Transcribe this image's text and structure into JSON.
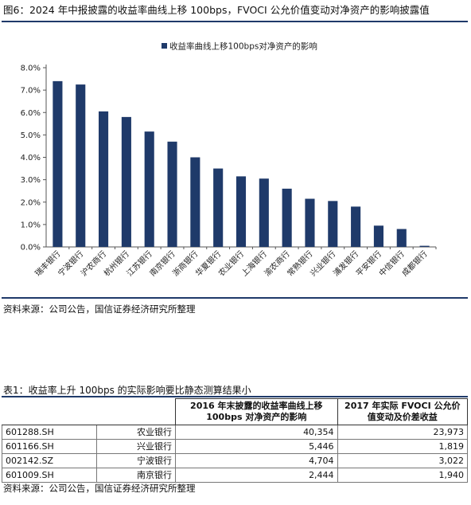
{
  "figure": {
    "title": "图6：2024 年中报披露的收益率曲线上移 100bps，FVOCI 公允价值变动对净资产的影响披露值",
    "source": "资料来源：公司公告，国信证券经济研究所整理"
  },
  "chart_data": {
    "type": "bar",
    "series": [
      {
        "name": "收益率曲线上移100bps对净资产的影响",
        "values": [
          7.4,
          7.25,
          6.05,
          5.8,
          5.15,
          4.7,
          4.0,
          3.5,
          3.15,
          3.05,
          2.6,
          2.15,
          2.05,
          1.8,
          0.95,
          0.8,
          0.05
        ]
      }
    ],
    "categories": [
      "瑞丰银行",
      "宁波银行",
      "沪农商行",
      "杭州银行",
      "江苏银行",
      "南京银行",
      "浙商银行",
      "华夏银行",
      "农业银行",
      "上海银行",
      "渝农商行",
      "常熟银行",
      "兴业银行",
      "浦发银行",
      "平安银行",
      "中信银行",
      "成都银行"
    ],
    "y_ticks": [
      "0.0%",
      "1.0%",
      "2.0%",
      "3.0%",
      "4.0%",
      "5.0%",
      "6.0%",
      "7.0%",
      "8.0%"
    ],
    "ylim": [
      0,
      8
    ],
    "grid": false,
    "legend_position": "top",
    "bar_color": "#1f3a6a"
  },
  "table": {
    "title": "表1：收益率上升 100bps 的实际影响要比静态测算结果小",
    "headers": [
      "2016 年末披露的收益率曲线上移 100bps 对净资产的影响",
      "2017 年实际 FVOCI 公允价值变动及价差收益"
    ],
    "rows": [
      {
        "code": "601288.SH",
        "name": "农业银行",
        "col1": "40,354",
        "col2": "23,973"
      },
      {
        "code": "601166.SH",
        "name": "兴业银行",
        "col1": "5,446",
        "col2": "1,819"
      },
      {
        "code": "002142.SZ",
        "name": "宁波银行",
        "col1": "4,704",
        "col2": "3,022"
      },
      {
        "code": "601009.SH",
        "name": "南京银行",
        "col1": "2,444",
        "col2": "1,940"
      }
    ],
    "source": "资料来源：公司公告，国信证券经济研究所整理"
  }
}
